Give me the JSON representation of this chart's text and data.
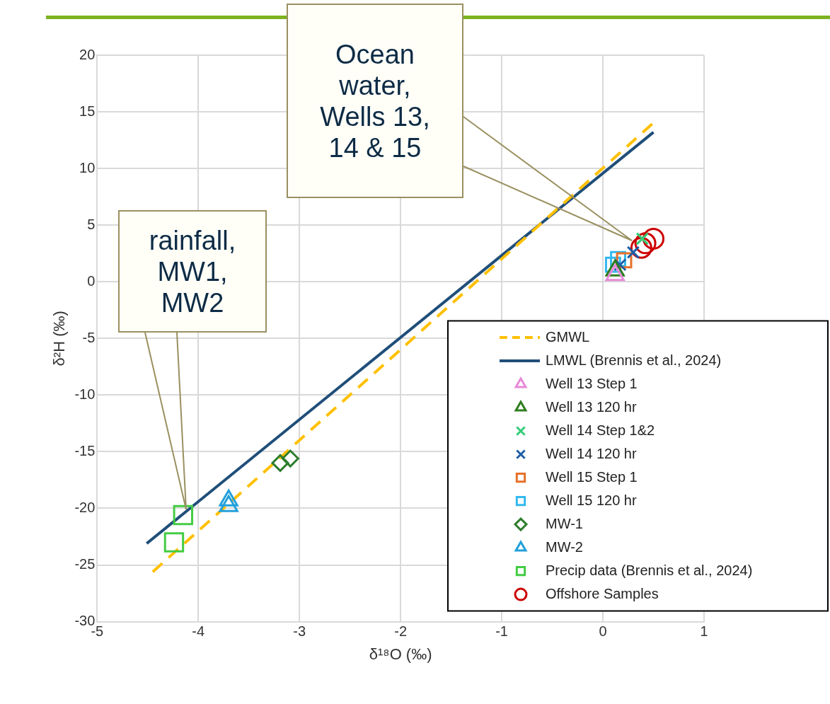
{
  "chart_data": {
    "type": "scatter",
    "xlabel": "δ¹⁸O (‰)",
    "ylabel": "δ²H (‰)",
    "xlim": [
      -5,
      1
    ],
    "xticks": [
      -5,
      -4,
      -3,
      -2,
      -1,
      0,
      1
    ],
    "ylim": [
      -30,
      20
    ],
    "yticks": [
      -30,
      -25,
      -20,
      -15,
      -10,
      -5,
      0,
      5,
      10,
      15,
      20
    ],
    "grid": true,
    "legend": "bottom right",
    "annotations": [
      "Ocean water, Wells 13, 14 & 15",
      "rainfall, MW1, MW2"
    ],
    "series": [
      {
        "name": "GMWL",
        "type": "line",
        "color": "#ffc000",
        "line_style": "dashed",
        "marker": "none",
        "x": [
          -4.45,
          0.52
        ],
        "values": [
          -25.6,
          14.2
        ]
      },
      {
        "name": "LMWL (Brennis et al., 2024)",
        "type": "line",
        "color": "#1f4e79",
        "line_style": "solid",
        "marker": "none",
        "x": [
          -4.51,
          0.5
        ],
        "values": [
          -23.1,
          13.2
        ]
      },
      {
        "name": "Well 13 Step 1",
        "type": "scatter",
        "color": "#e88ad8",
        "marker": "triangle",
        "x": [
          0.12
        ],
        "values": [
          0.6
        ]
      },
      {
        "name": "Well 13 120 hr",
        "type": "scatter",
        "color": "#2e7d1f",
        "marker": "triangle",
        "x": [
          0.12
        ],
        "values": [
          1.0
        ]
      },
      {
        "name": "Well 14 Step 1&2",
        "type": "scatter",
        "color": "#33cc77",
        "marker": "cross",
        "x": [
          0.39
        ],
        "values": [
          3.8
        ]
      },
      {
        "name": "Well 14 120 hr",
        "type": "scatter",
        "color": "#1f5fa6",
        "marker": "cross",
        "x": [
          0.17,
          0.3
        ],
        "values": [
          1.5,
          2.6
        ]
      },
      {
        "name": "Well 15 Step 1",
        "type": "scatter",
        "color": "#e8702a",
        "marker": "square",
        "x": [
          0.21
        ],
        "values": [
          1.9
        ]
      },
      {
        "name": "Well 15 120 hr",
        "type": "scatter",
        "color": "#33b8f0",
        "marker": "square",
        "x": [
          0.1,
          0.15
        ],
        "values": [
          1.5,
          2.0
        ]
      },
      {
        "name": "MW-1",
        "type": "scatter",
        "color": "#2d7d2d",
        "marker": "diamond",
        "x": [
          -3.19,
          -3.09
        ],
        "values": [
          -16.0,
          -15.6
        ]
      },
      {
        "name": "MW-2",
        "type": "scatter",
        "color": "#22a0db",
        "marker": "triangle",
        "x": [
          -3.7,
          -3.7
        ],
        "values": [
          -19.3,
          -19.8
        ]
      },
      {
        "name": "Precip data (Brennis et al., 2024)",
        "type": "scatter",
        "color": "#44cc44",
        "marker": "square",
        "x": [
          -4.15,
          -4.24
        ],
        "values": [
          -20.6,
          -23.0
        ]
      },
      {
        "name": "Offshore Samples",
        "type": "scatter",
        "color": "#cc0000",
        "marker": "circle",
        "x": [
          0.38,
          0.42,
          0.5
        ],
        "values": [
          3.0,
          3.4,
          3.8
        ]
      }
    ]
  }
}
